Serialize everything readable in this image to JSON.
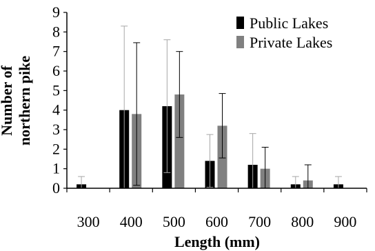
{
  "chart_data": {
    "type": "bar",
    "categories": [
      "300",
      "400",
      "500",
      "600",
      "700",
      "800",
      "900"
    ],
    "series": [
      {
        "name": "Public Lakes",
        "color": "#000000",
        "values": [
          0.2,
          4.0,
          4.2,
          1.4,
          1.2,
          0.2,
          0.2
        ],
        "error": [
          0.4,
          4.3,
          3.4,
          1.35,
          1.6,
          0.4,
          0.4
        ]
      },
      {
        "name": "Private Lakes",
        "color": "#808080",
        "values": [
          0.0,
          3.8,
          4.8,
          3.2,
          1.0,
          0.4,
          0.0
        ],
        "error": [
          0.0,
          3.65,
          2.2,
          1.65,
          1.1,
          0.8,
          0.0
        ]
      }
    ],
    "xlabel": "Length (mm)",
    "ylabel": [
      "Number of",
      "northern pike"
    ],
    "ylim": [
      0,
      9
    ],
    "yticks": [
      "0",
      "1",
      "2",
      "3",
      "4",
      "5",
      "6",
      "7",
      "8",
      "9"
    ],
    "grid": false,
    "legend_position": "top-right",
    "error_bar_colors": {
      "Public Lakes": "#a6a6a6",
      "Private Lakes": "#000000"
    }
  }
}
